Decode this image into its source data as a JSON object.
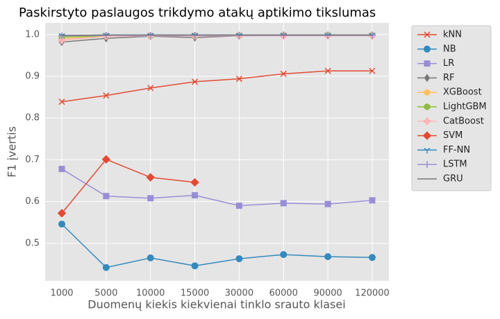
{
  "chart_data": {
    "type": "line",
    "title": "Paskirstyto paslaugos trikdymo atakų aptikimo tikslumas",
    "xlabel": "Duomenų kiekis kiekvienai tinklo srauto klasei",
    "ylabel": "F1 įvertis",
    "categories": [
      "1000",
      "5000",
      "10000",
      "15000",
      "30000",
      "60000",
      "90000",
      "120000"
    ],
    "ylim": [
      0.41,
      1.028
    ],
    "yticks": [
      0.5,
      0.6,
      0.7,
      0.8,
      0.9,
      {
        "value": 1,
        "label": "1.0"
      }
    ],
    "grid": true,
    "legend": "outside-right",
    "series": [
      {
        "name": "kNN",
        "color": "#E24A33",
        "marker": "x",
        "values": [
          0.839,
          0.854,
          0.872,
          0.887,
          0.894,
          0.906,
          0.913,
          0.913
        ]
      },
      {
        "name": "NB",
        "color": "#348ABD",
        "marker": "o",
        "values": [
          0.546,
          0.442,
          0.465,
          0.446,
          0.463,
          0.473,
          0.468,
          0.466
        ]
      },
      {
        "name": "LR",
        "color": "#988ED5",
        "marker": "s",
        "values": [
          0.678,
          0.613,
          0.608,
          0.615,
          0.59,
          0.596,
          0.594,
          0.603
        ]
      },
      {
        "name": "RF",
        "color": "#777777",
        "marker": "d",
        "values": [
          0.982,
          0.991,
          0.996,
          0.993,
          0.997,
          0.998,
          0.998,
          0.998
        ]
      },
      {
        "name": "XGBoost",
        "color": "#FBC15E",
        "marker": "p",
        "values": [
          0.99,
          0.997,
          0.998,
          0.998,
          0.999,
          0.999,
          0.999,
          0.999
        ]
      },
      {
        "name": "LightGBM",
        "color": "#8EBA42",
        "marker": "h",
        "values": [
          0.994,
          0.997,
          0.997,
          0.998,
          0.998,
          0.999,
          0.999,
          0.999
        ]
      },
      {
        "name": "CatBoost",
        "color": "#FFB5B8",
        "marker": "P",
        "values": [
          0.986,
          0.996,
          0.997,
          0.997,
          0.997,
          0.997,
          0.997,
          0.997
        ]
      },
      {
        "name": "SVM",
        "color": "#E24A33",
        "marker": "D",
        "values": [
          0.572,
          0.701,
          0.658,
          0.646,
          null,
          null,
          null,
          null
        ]
      },
      {
        "name": "FF-NN",
        "color": "#348ABD",
        "marker": "1",
        "values": [
          0.998,
          0.999,
          0.999,
          0.999,
          0.999,
          0.999,
          0.999,
          0.999
        ]
      },
      {
        "name": "LSTM",
        "color": "#988ED5",
        "marker": "+",
        "values": [
          0.997,
          0.998,
          0.998,
          0.998,
          0.998,
          0.998,
          0.998,
          0.998
        ]
      },
      {
        "name": "GRU",
        "color": "#777777",
        "marker": "none",
        "values": [
          0.998,
          0.999,
          0.999,
          0.999,
          0.999,
          0.999,
          0.999,
          0.999
        ]
      }
    ]
  }
}
